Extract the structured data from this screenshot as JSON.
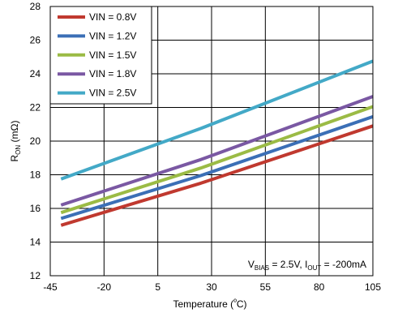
{
  "chart_data": {
    "type": "line",
    "xlabel_main": "Temperature (",
    "xlabel_unit_deg": "º",
    "xlabel_tail": "C)",
    "ylabel_main": "R",
    "ylabel_sub": "ON",
    "ylabel_unit": " (mΩ)",
    "xlim": [
      -45,
      105
    ],
    "ylim": [
      12,
      28
    ],
    "xticks": [
      -45,
      -20,
      5,
      30,
      55,
      80,
      105
    ],
    "yticks": [
      12,
      14,
      16,
      18,
      20,
      22,
      24,
      26,
      28
    ],
    "grid": true,
    "legend_position": "top-left",
    "series": [
      {
        "name": "VIN = 0.8V",
        "color": "#c0392f",
        "x": [
          -40,
          25,
          105
        ],
        "y": [
          15.0,
          17.5,
          20.9
        ]
      },
      {
        "name": "VIN = 1.2V",
        "color": "#3b6fb6",
        "x": [
          -40,
          25,
          105
        ],
        "y": [
          15.4,
          17.95,
          21.45
        ]
      },
      {
        "name": "VIN = 1.5V",
        "color": "#9bbb45",
        "x": [
          -40,
          25,
          105
        ],
        "y": [
          15.75,
          18.4,
          22.05
        ]
      },
      {
        "name": "VIN = 1.8V",
        "color": "#7a58a3",
        "x": [
          -40,
          25,
          105
        ],
        "y": [
          16.2,
          18.9,
          22.65
        ]
      },
      {
        "name": "VIN = 2.5V",
        "color": "#43a9c7",
        "x": [
          -40,
          25,
          105
        ],
        "y": [
          17.75,
          20.75,
          24.75
        ]
      }
    ],
    "annotation": {
      "v": "V",
      "v_sub": "BIAS",
      "v_val": " = 2.5V, ",
      "i": "I",
      "i_sub": "OUT",
      "i_val": " = -200mA"
    }
  }
}
